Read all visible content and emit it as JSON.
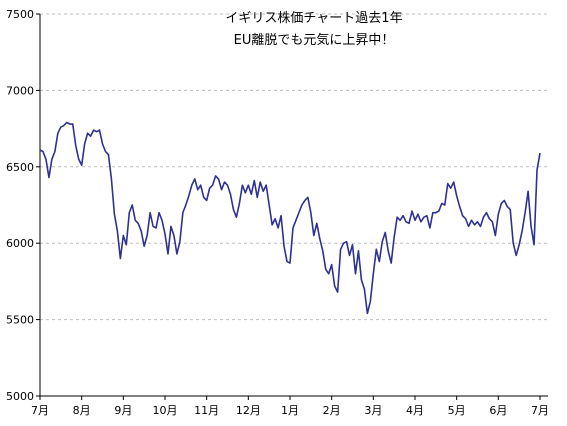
{
  "chart_data": {
    "type": "line",
    "title": "イギリス株価チャート過去1年",
    "subtitle": "EU離脱でも元気に上昇中！",
    "xlabel": "",
    "ylabel": "",
    "ylim": [
      5000,
      7500
    ],
    "yticks": [
      5000,
      5500,
      6000,
      6500,
      7000,
      7500
    ],
    "xticks": [
      "7月",
      "8月",
      "9月",
      "10月",
      "11月",
      "12月",
      "1月",
      "2月",
      "3月",
      "4月",
      "5月",
      "6月",
      "7月"
    ],
    "grid": true,
    "legend": "none",
    "colors": {
      "line": "#2e3192",
      "grid": "#bfbfbf",
      "axis": "#000000"
    },
    "series": [
      {
        "values": [
          6610,
          6600,
          6550,
          6430,
          6550,
          6600,
          6720,
          6760,
          6770,
          6790,
          6780,
          6780,
          6640,
          6550,
          6510,
          6650,
          6720,
          6700,
          6740,
          6730,
          6740,
          6650,
          6600,
          6580,
          6420,
          6190,
          6080,
          5900,
          6050,
          5990,
          6200,
          6250,
          6150,
          6130,
          6080,
          5980,
          6050,
          6200,
          6110,
          6100,
          6200,
          6150,
          6060,
          5930,
          6110,
          6050,
          5930,
          6010,
          6200,
          6250,
          6310,
          6380,
          6420,
          6350,
          6380,
          6300,
          6280,
          6360,
          6380,
          6440,
          6420,
          6350,
          6400,
          6380,
          6320,
          6220,
          6170,
          6260,
          6380,
          6330,
          6380,
          6320,
          6410,
          6300,
          6400,
          6340,
          6380,
          6250,
          6120,
          6160,
          6100,
          6180,
          5980,
          5880,
          5870,
          6100,
          6150,
          6200,
          6250,
          6280,
          6300,
          6200,
          6050,
          6130,
          6030,
          5950,
          5830,
          5800,
          5860,
          5720,
          5680,
          5960,
          6000,
          6010,
          5920,
          5990,
          5800,
          5950,
          5760,
          5700,
          5540,
          5620,
          5800,
          5960,
          5880,
          6010,
          6070,
          5950,
          5870,
          6040,
          6170,
          6150,
          6180,
          6140,
          6130,
          6210,
          6150,
          6190,
          6140,
          6170,
          6180,
          6100,
          6200,
          6200,
          6210,
          6260,
          6250,
          6390,
          6360,
          6400,
          6310,
          6240,
          6180,
          6160,
          6110,
          6150,
          6120,
          6140,
          6110,
          6170,
          6200,
          6160,
          6140,
          6050,
          6190,
          6260,
          6280,
          6240,
          6220,
          6000,
          5920,
          5990,
          6080,
          6200,
          6340,
          6110,
          5990,
          6480,
          6590
        ]
      }
    ]
  }
}
